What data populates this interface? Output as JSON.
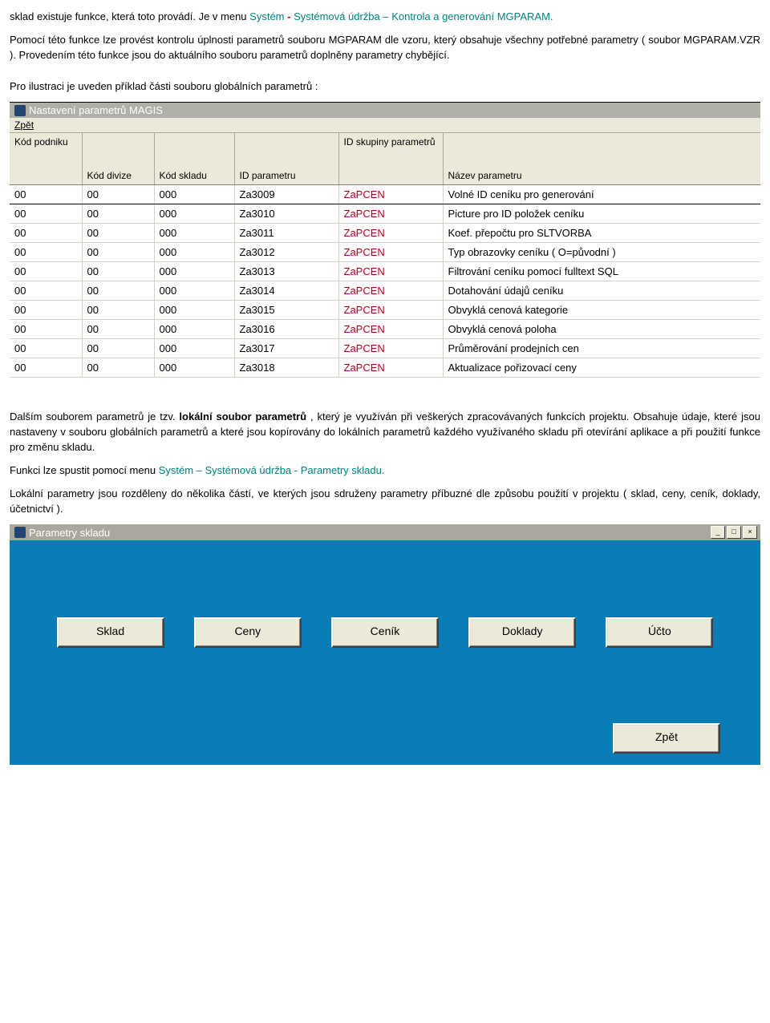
{
  "intro": {
    "p1_a": "sklad existuje funkce, která toto provádí. Je v menu ",
    "p1_b": "Systém ",
    "p1_dash": "- ",
    "p1_c": "  Systémová údržba – Kontrola a generování MGPARAM.",
    "p2": "Pomocí této funkce lze provést kontrolu úplnosti parametrů souboru MGPARAM dle vzoru, který obsahuje všechny potřebné parametry ( soubor MGPARAM.VZR ). Provedením této funkce jsou do aktuálního souboru parametrů doplněny parametry chybějící.",
    "p3": "Pro ilustraci je uveden příklad části souboru globálních parametrů :"
  },
  "win1": {
    "title": "Nastavení parametrů MAGIS",
    "menu_back": "Zpět",
    "menu_back_ul": "Z",
    "headers": {
      "c0": "Kód podniku",
      "c1": "Kód divize",
      "c2": "Kód skladu",
      "c3": "ID parametru",
      "c4": "ID skupiny parametrů",
      "c5": "Název parametru"
    },
    "col_widths": [
      "90px",
      "90px",
      "100px",
      "130px",
      "130px",
      "auto"
    ],
    "id_sk_color": "#b00020",
    "rows": [
      {
        "c0": "00",
        "c1": "00",
        "c2": "000",
        "c3": "Za3009",
        "c4": "ZaPCEN",
        "c5": "Volné ID ceníku pro generování"
      },
      {
        "c0": "00",
        "c1": "00",
        "c2": "000",
        "c3": "Za3010",
        "c4": "ZaPCEN",
        "c5": "Picture pro ID položek ceníku"
      },
      {
        "c0": "00",
        "c1": "00",
        "c2": "000",
        "c3": "Za3011",
        "c4": "ZaPCEN",
        "c5": "Koef. přepočtu pro SLTVORBA"
      },
      {
        "c0": "00",
        "c1": "00",
        "c2": "000",
        "c3": "Za3012",
        "c4": "ZaPCEN",
        "c5": "Typ obrazovky ceníku ( O=původní )"
      },
      {
        "c0": "00",
        "c1": "00",
        "c2": "000",
        "c3": "Za3013",
        "c4": "ZaPCEN",
        "c5": "Filtrování ceníku pomocí fulltext SQL"
      },
      {
        "c0": "00",
        "c1": "00",
        "c2": "000",
        "c3": "Za3014",
        "c4": "ZaPCEN",
        "c5": "Dotahování údajů ceníku"
      },
      {
        "c0": "00",
        "c1": "00",
        "c2": "000",
        "c3": "Za3015",
        "c4": "ZaPCEN",
        "c5": "Obvyklá cenová kategorie"
      },
      {
        "c0": "00",
        "c1": "00",
        "c2": "000",
        "c3": "Za3016",
        "c4": "ZaPCEN",
        "c5": "Obvyklá cenová  poloha"
      },
      {
        "c0": "00",
        "c1": "00",
        "c2": "000",
        "c3": "Za3017",
        "c4": "ZaPCEN",
        "c5": "Průměrování prodejních cen"
      },
      {
        "c0": "00",
        "c1": "00",
        "c2": "000",
        "c3": "Za3018",
        "c4": "ZaPCEN",
        "c5": "Aktualizace pořizovací ceny"
      }
    ]
  },
  "mid": {
    "p4_a": "Dalším souborem parametrů je tzv. ",
    "p4_b": "lokální soubor parametrů",
    "p4_c": ", který je využíván při veškerých zpracovávaných funkcích projektu. Obsahuje údaje, které jsou nastaveny v souboru globálních parametrů a které jsou kopírovány do lokálních parametrů každého využívaného skladu při otevírání aplikace a při použití funkce pro změnu skladu.",
    "p5_a": "Funkci lze spustit pomocí menu  ",
    "p5_b": "Systém – Systémová údržba - Parametry skladu.",
    "p6": "Lokální parametry jsou rozděleny do několika částí, ve kterých jsou sdruženy parametry příbuzné dle způsobu použití v projektu ( sklad, ceny, ceník, doklady, účetnictví )."
  },
  "win2": {
    "title": "Parametry skladu",
    "bg_color": "#0a7db6",
    "buttons": [
      "Sklad",
      "Ceny",
      "Ceník",
      "Doklady",
      "Účto"
    ],
    "back": "Zpět",
    "ctl_min": "_",
    "ctl_max": "□",
    "ctl_close": "×"
  }
}
